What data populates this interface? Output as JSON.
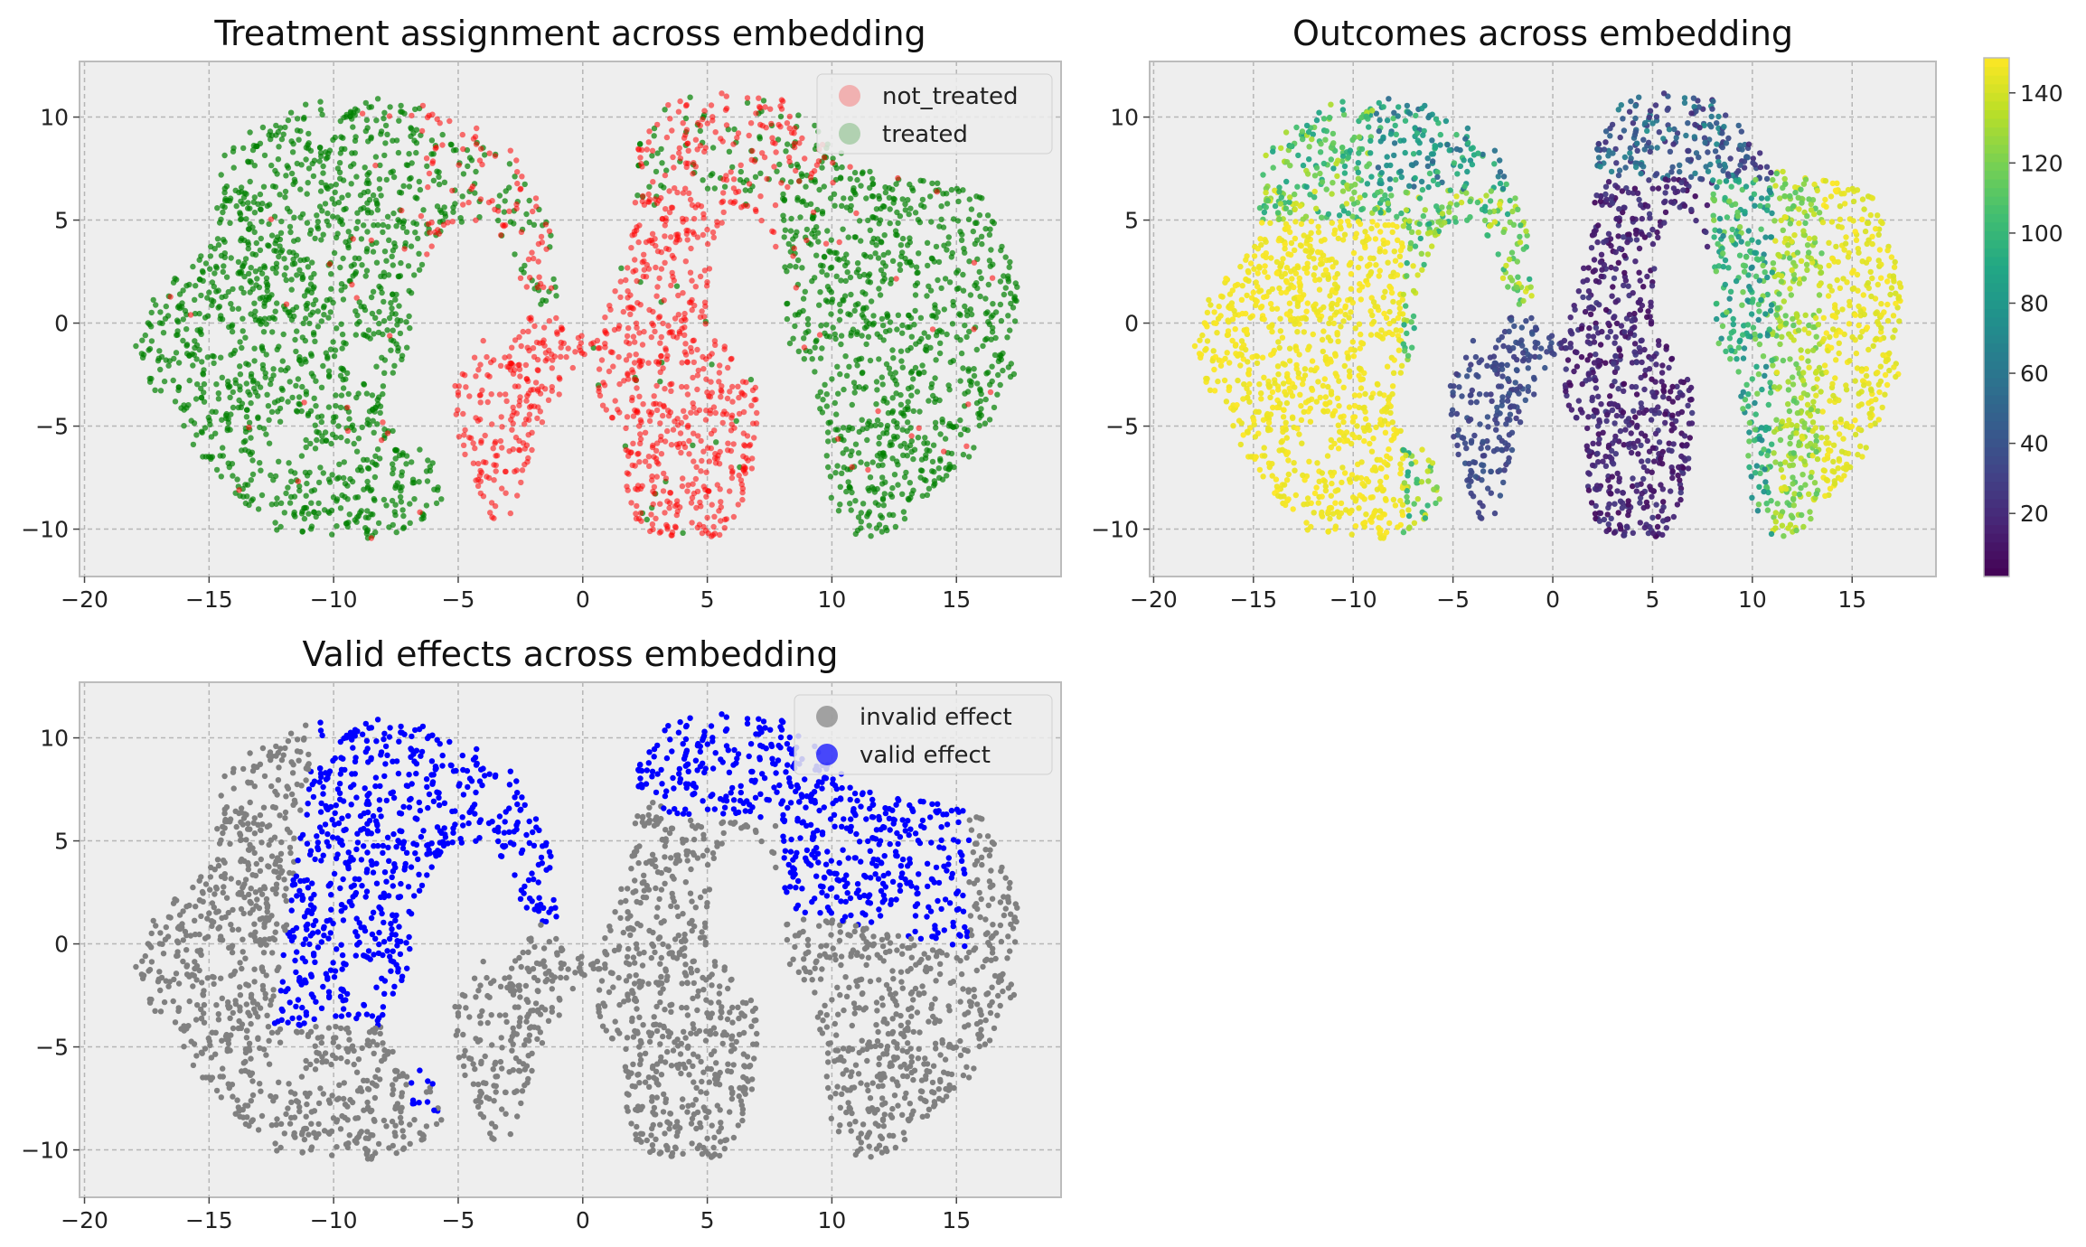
{
  "chart_data": [
    {
      "type": "scatter",
      "title": "Treatment assignment across embedding",
      "xlabel": "",
      "ylabel": "",
      "xlim": [
        -20.2,
        19.2
      ],
      "ylim": [
        -12.3,
        12.7
      ],
      "xticks": [
        -20,
        -15,
        -10,
        -5,
        0,
        5,
        10,
        15
      ],
      "yticks": [
        -10,
        -5,
        0,
        5,
        10
      ],
      "grid": true,
      "legend_position": "top-right",
      "series": [
        {
          "name": "not_treated",
          "color": "#ff0000",
          "region": "center"
        },
        {
          "name": "treated",
          "color": "#008000",
          "region": "outer"
        }
      ]
    },
    {
      "type": "scatter",
      "title": "Outcomes across embedding",
      "xlabel": "",
      "ylabel": "",
      "xlim": [
        -20.2,
        19.2
      ],
      "ylim": [
        -12.3,
        12.7
      ],
      "xticks": [
        -20,
        -15,
        -10,
        -5,
        0,
        5,
        10,
        15
      ],
      "yticks": [
        -10,
        -5,
        0,
        5,
        10
      ],
      "grid": true,
      "colormap": "viridis",
      "colorbar": {
        "min": 2,
        "max": 150,
        "ticks": [
          20,
          40,
          60,
          80,
          100,
          120,
          140
        ]
      }
    },
    {
      "type": "scatter",
      "title": "Valid effects across embedding",
      "xlabel": "",
      "ylabel": "",
      "xlim": [
        -20.2,
        19.2
      ],
      "ylim": [
        -12.3,
        12.7
      ],
      "xticks": [
        -20,
        -15,
        -10,
        -5,
        0,
        5,
        10,
        15
      ],
      "yticks": [
        -10,
        -5,
        0,
        5,
        10
      ],
      "grid": true,
      "legend_position": "top-right",
      "series": [
        {
          "name": "invalid effect",
          "color": "#808080"
        },
        {
          "name": "valid effect",
          "color": "#0000ff"
        }
      ]
    }
  ]
}
